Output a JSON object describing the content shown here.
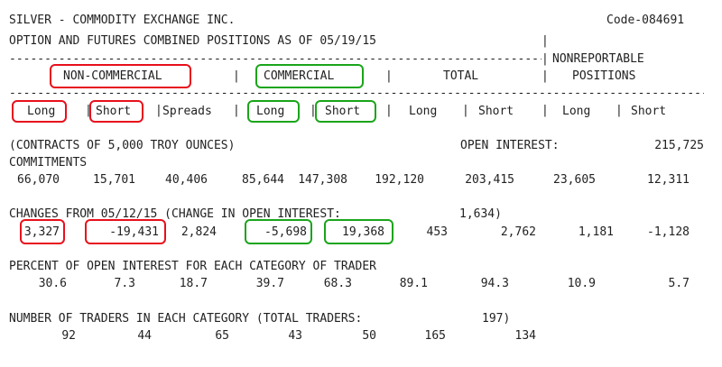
{
  "report": {
    "title": "SILVER - COMMODITY EXCHANGE INC.",
    "code": "Code-084691",
    "subtitle": "OPTION AND FUTURES COMBINED POSITIONS AS OF 05/19/15"
  },
  "header": {
    "nonreportable_1": "NONREPORTABLE",
    "nonreportable_2": "POSITIONS",
    "groups": {
      "noncommercial": "NON-COMMERCIAL",
      "commercial": "COMMERCIAL",
      "total": "TOTAL"
    },
    "columns": {
      "nc_long": "Long",
      "nc_short": "Short",
      "spreads": "Spreads",
      "c_long": "Long",
      "c_short": "Short",
      "t_long": "Long",
      "t_short": "Short",
      "nr_long": "Long",
      "nr_short": "Short"
    },
    "dash_line": "---------------------------------------------------------------------------------------------------",
    "sep_left": "|",
    "sep_mid1": "|",
    "sep_mid2": "|",
    "sep_right": "|",
    "sep_title": "|"
  },
  "contracts": {
    "label": "(CONTRACTS OF 5,000 TROY OUNCES)",
    "oi_label": "OPEN INTEREST:",
    "oi_value": "215,725"
  },
  "commitments": {
    "label": "COMMITMENTS",
    "values": [
      "66,070",
      "15,701",
      "40,406",
      "85,644",
      "147,308",
      "192,120",
      "203,415",
      "23,605",
      "12,311"
    ]
  },
  "changes": {
    "label": "CHANGES FROM 05/12/15 (CHANGE IN OPEN INTEREST:",
    "oi_change": "1,634)",
    "values": [
      "3,327",
      "-19,431",
      "2,824",
      "-5,698",
      "19,368",
      "453",
      "2,762",
      "1,181",
      "-1,128"
    ]
  },
  "percent": {
    "label": "PERCENT OF OPEN INTEREST FOR EACH CATEGORY OF TRADER",
    "values": [
      "30.6",
      "7.3",
      "18.7",
      "39.7",
      "68.3",
      "89.1",
      "94.3",
      "10.9",
      "5.7"
    ]
  },
  "traders": {
    "label": "NUMBER OF TRADERS IN EACH CATEGORY (TOTAL TRADERS:",
    "total": "197)",
    "values": [
      "92",
      "44",
      "65",
      "43",
      "50",
      "165",
      "134"
    ]
  },
  "highlight_colors": {
    "noncommercial": "#e8101c",
    "commercial": "#1aa51a"
  }
}
